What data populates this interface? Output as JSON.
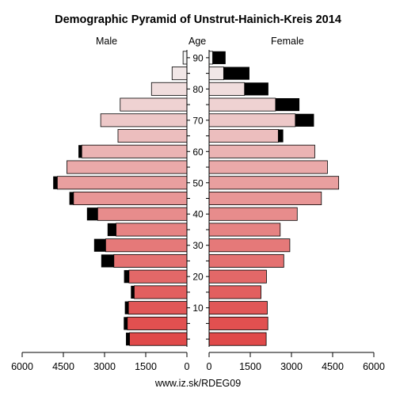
{
  "chart_data": {
    "type": "bar",
    "title": "Demographic Pyramid of Unstrut-Hainich-Kreis 2014",
    "left_label": "Male",
    "center_label": "Age",
    "right_label": "Female",
    "footer": "www.iz.sk/RDEG09",
    "age_groups": [
      "0-4",
      "5-9",
      "10-14",
      "15-19",
      "20-24",
      "25-29",
      "30-34",
      "35-39",
      "40-44",
      "45-49",
      "50-54",
      "55-59",
      "60-64",
      "65-69",
      "70-74",
      "75-79",
      "80-84",
      "85-89",
      "90+"
    ],
    "age_tick_labels": [
      "10",
      "20",
      "30",
      "40",
      "50",
      "60",
      "70",
      "80",
      "90"
    ],
    "x_ticks": [
      6000,
      4500,
      3000,
      1500,
      0
    ],
    "x_tick_labels_left": [
      "6000",
      "4500",
      "3000",
      "1500",
      "0"
    ],
    "x_tick_labels_right": [
      "0",
      "1500",
      "3000",
      "4500",
      "6000"
    ],
    "xlim": [
      0,
      6000
    ],
    "series": [
      {
        "name": "Male",
        "values": [
          2090,
          2170,
          2130,
          1920,
          2110,
          2660,
          2960,
          2580,
          3250,
          4130,
          4720,
          4370,
          3830,
          2510,
          3140,
          2430,
          1290,
          540,
          140
        ],
        "excess": [
          130,
          130,
          130,
          120,
          180,
          460,
          420,
          310,
          390,
          150,
          150,
          0,
          120,
          0,
          0,
          0,
          0,
          0,
          0
        ]
      },
      {
        "name": "Female",
        "values": [
          2080,
          2140,
          2120,
          1890,
          2090,
          2720,
          2940,
          2590,
          3210,
          4090,
          4720,
          4310,
          3850,
          2520,
          3140,
          2420,
          1290,
          530,
          130
        ],
        "excess": [
          0,
          0,
          0,
          0,
          0,
          0,
          0,
          0,
          0,
          0,
          0,
          0,
          0,
          180,
          680,
          870,
          870,
          940,
          470
        ]
      }
    ],
    "colors": {
      "young": "#e04a4a",
      "old": "#f2f2f2",
      "excess": "#000000",
      "axis": "#000000"
    }
  }
}
